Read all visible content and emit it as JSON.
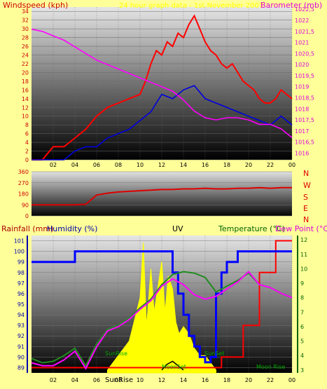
{
  "titles": {
    "windspeed": "Windspeed (kph)",
    "header": "24 hour graph data - 1st November 2007",
    "barometer": "Barometer (mb)",
    "rainfall": "Rainfall (mm)",
    "humidity": "Humidity (%)",
    "uv": "UV",
    "temperature": "Temperature (°C)",
    "dewpoint": "Dew Point (°C)"
  },
  "colors": {
    "background": "#FFFF99",
    "wind_gust": "#FF0000",
    "wind_avg": "#0000DD",
    "barometer": "#FF00FF",
    "direction": "#DD0000",
    "rainfall": "#FF0000",
    "humidity": "#0000FF",
    "uv": "#FFFF00",
    "temperature": "#228B22",
    "dewpoint": "#FF00FF",
    "rain_axis": "#AA0000",
    "humidity_axis": "#0000AA",
    "temp_axis": "#006400"
  },
  "compass": [
    "N",
    "W",
    "S",
    "E",
    "N"
  ],
  "solar_labels": {
    "sunrise": "SunRise",
    "sunset": "SunSet",
    "moonset": "MoonSet",
    "moonrise": "Moon Rise"
  },
  "chart_data": [
    {
      "id": "wind",
      "type": "line",
      "x_tick_labels": [
        "02",
        "04",
        "06",
        "08",
        "10",
        "12",
        "14",
        "16",
        "18",
        "20",
        "22",
        "00"
      ],
      "y_left": {
        "label": "Windspeed (kph)",
        "range": [
          0,
          35
        ],
        "ticks": [
          0,
          2,
          4,
          6,
          8,
          10,
          12,
          14,
          16,
          18,
          20,
          22,
          24,
          26,
          28,
          30,
          32,
          34
        ]
      },
      "y_right": {
        "label": "Barometer (mb)",
        "range": [
          1015.7,
          1022.6
        ],
        "ticks": [
          "1016",
          "1016,5",
          "1017",
          "1017,5",
          "1018",
          "1018,5",
          "1019",
          "1019,5",
          "1020",
          "1020,5",
          "1021",
          "1021,5",
          "1022",
          "1022,5"
        ]
      },
      "series": [
        {
          "name": "Gust",
          "axis": "left",
          "x": [
            0,
            1,
            2,
            3,
            4,
            5,
            6,
            7,
            8,
            9,
            10,
            10.5,
            11,
            11.5,
            12,
            12.5,
            13,
            13.5,
            14,
            14.5,
            15,
            15.5,
            16,
            16.5,
            17,
            17.5,
            18,
            18.5,
            19,
            19.5,
            20,
            20.5,
            21,
            21.5,
            22,
            22.5,
            23,
            23.5,
            24
          ],
          "values": [
            0,
            0,
            3,
            3,
            5,
            7,
            10,
            12,
            13,
            14,
            15,
            18,
            22,
            25,
            24,
            27,
            26,
            29,
            28,
            31,
            33,
            30,
            27,
            25,
            24,
            22,
            21,
            22,
            20,
            18,
            17,
            16,
            14,
            13,
            13,
            14,
            16,
            15,
            14
          ]
        },
        {
          "name": "Average",
          "axis": "left",
          "x": [
            0,
            1,
            2,
            3,
            4,
            5,
            6,
            7,
            8,
            9,
            10,
            11,
            12,
            13,
            14,
            15,
            16,
            17,
            18,
            19,
            20,
            21,
            22,
            23,
            24
          ],
          "values": [
            0,
            0,
            0,
            0,
            2,
            3,
            3,
            5,
            6,
            7,
            9,
            11,
            15,
            14,
            16,
            17,
            14,
            13,
            12,
            11,
            10,
            9,
            8,
            10,
            8
          ]
        },
        {
          "name": "Barometer",
          "axis": "right",
          "x": [
            0,
            1,
            2,
            3,
            4,
            5,
            6,
            7,
            8,
            9,
            10,
            11,
            12,
            13,
            14,
            15,
            16,
            17,
            18,
            19,
            20,
            21,
            22,
            23,
            24
          ],
          "values": [
            1021.6,
            1021.5,
            1021.3,
            1021.1,
            1020.8,
            1020.5,
            1020.2,
            1020.0,
            1019.8,
            1019.6,
            1019.4,
            1019.2,
            1019.0,
            1018.8,
            1018.4,
            1017.9,
            1017.6,
            1017.5,
            1017.6,
            1017.6,
            1017.5,
            1017.3,
            1017.3,
            1017.1,
            1016.7
          ]
        }
      ]
    },
    {
      "id": "direction",
      "type": "line",
      "x_tick_labels": [],
      "y_left": {
        "range": [
          0,
          360
        ],
        "ticks": [
          "0",
          "90",
          "180",
          "270",
          "360"
        ]
      },
      "series": [
        {
          "name": "Direction",
          "x": [
            0,
            1,
            2,
            3,
            4,
            5,
            6,
            7,
            8,
            9,
            10,
            11,
            12,
            13,
            14,
            15,
            16,
            17,
            18,
            19,
            20,
            21,
            22,
            23,
            24
          ],
          "values": [
            90,
            90,
            90,
            90,
            90,
            95,
            170,
            185,
            195,
            200,
            205,
            210,
            215,
            215,
            220,
            220,
            225,
            220,
            220,
            225,
            225,
            230,
            225,
            230,
            230
          ]
        }
      ]
    },
    {
      "id": "climate",
      "type": "line",
      "x_tick_labels": [
        "02",
        "04",
        "06",
        "08",
        "10",
        "12",
        "14",
        "16",
        "18",
        "20",
        "22",
        "00"
      ],
      "y_left": {
        "label": "Humidity (%)",
        "range": [
          88.5,
          101.5
        ],
        "ticks": [
          "89",
          "90",
          "91",
          "92",
          "93",
          "94",
          "95",
          "96",
          "97",
          "98",
          "99",
          "100",
          "101"
        ]
      },
      "y_right": {
        "label": "Temperature (°C)",
        "range": [
          2.8,
          12.3
        ],
        "ticks": [
          "3",
          "4",
          "5",
          "6",
          "7",
          "8",
          "9",
          "10",
          "11",
          "12"
        ]
      },
      "series": [
        {
          "name": "Humidity",
          "axis": "left",
          "x": [
            0,
            1,
            2,
            3,
            3.8,
            4,
            5,
            6,
            7,
            8,
            9,
            10,
            11,
            12,
            12.5,
            13,
            13.5,
            14,
            14.5,
            15,
            15.5,
            16,
            16.5,
            17,
            17.5,
            18,
            19,
            20,
            21,
            22,
            23,
            24
          ],
          "values": [
            99,
            99,
            99,
            99,
            99,
            100,
            100,
            100,
            100,
            100,
            100,
            100,
            100,
            100,
            100,
            98,
            96,
            94,
            92,
            91,
            90,
            89.5,
            90,
            96,
            98,
            99,
            100,
            100,
            100,
            100,
            100,
            100
          ]
        },
        {
          "name": "Temperature",
          "axis": "right",
          "x": [
            0,
            1,
            2,
            3,
            4,
            5,
            6,
            7,
            8,
            9,
            10,
            11,
            12,
            13,
            14,
            15,
            16,
            17,
            18,
            19,
            20,
            21,
            22,
            23,
            24
          ],
          "values": [
            3.8,
            3.5,
            3.6,
            4.0,
            4.5,
            3.3,
            4.8,
            5.8,
            6.1,
            6.6,
            7.3,
            7.9,
            8.9,
            9.6,
            9.8,
            9.7,
            9.4,
            8.4,
            8.8,
            9.2,
            9.7,
            8.9,
            8.7,
            8.3,
            8.0
          ]
        },
        {
          "name": "Dew Point",
          "axis": "right",
          "x": [
            0,
            1,
            2,
            3,
            4,
            5,
            6,
            7,
            8,
            9,
            10,
            11,
            12,
            13,
            14,
            15,
            16,
            17,
            18,
            19,
            20,
            21,
            22,
            23,
            24
          ],
          "values": [
            3.5,
            3.3,
            3.3,
            3.7,
            4.3,
            3.1,
            4.6,
            5.7,
            6.0,
            6.5,
            7.2,
            7.8,
            8.8,
            9.3,
            8.9,
            8.2,
            7.9,
            8.1,
            8.6,
            9.1,
            9.8,
            8.9,
            8.7,
            8.3,
            8.0
          ]
        },
        {
          "name": "Rainfall",
          "axis": "left",
          "x": [
            0,
            3,
            4,
            17,
            17.5,
            19,
            19.5,
            20.5,
            21,
            22,
            22.5,
            23.5,
            24
          ],
          "values": [
            89,
            89,
            89,
            89,
            90,
            90,
            93,
            93,
            98,
            98,
            101,
            101,
            101
          ]
        },
        {
          "name": "UV",
          "axis": "right",
          "x": [
            7,
            8,
            8.5,
            9,
            9.5,
            10,
            10.3,
            10.6,
            11,
            11.3,
            11.6,
            12,
            12.3,
            12.6,
            13,
            13.3,
            13.6,
            14,
            14.5,
            15,
            15.5,
            16,
            17
          ],
          "values": [
            3,
            4,
            4.5,
            5,
            6.5,
            8,
            11.8,
            6,
            10,
            7,
            8.5,
            10.5,
            7,
            9.5,
            8.6,
            6.3,
            5.5,
            6,
            5.5,
            4.5,
            4,
            4,
            3
          ]
        },
        {
          "name": "Solar",
          "axis": "right",
          "x": [
            12,
            12.5,
            13,
            13.5,
            14
          ],
          "values": [
            3,
            3.4,
            3.6,
            3.3,
            3
          ]
        }
      ]
    }
  ]
}
